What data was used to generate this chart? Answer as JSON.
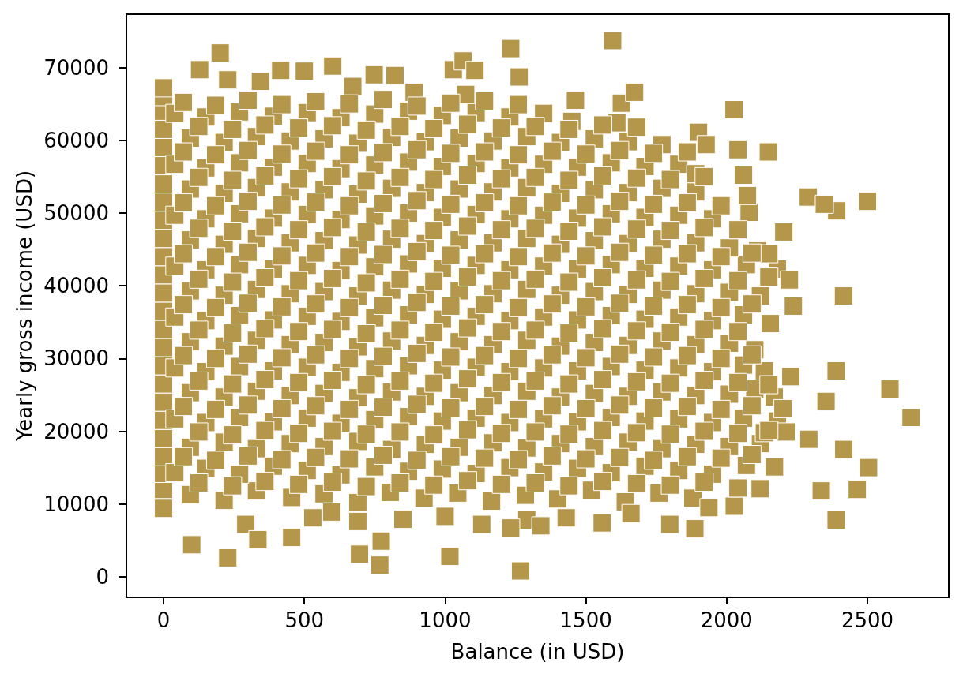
{
  "chart_data": {
    "type": "scatter",
    "xlabel": "Balance (in USD)",
    "ylabel": "Yearly gross income (USD)",
    "color": "#b5974b",
    "marker": "square",
    "grid": false,
    "xlim": [
      -132,
      2789
    ],
    "ylim": [
      -2830,
      77330
    ],
    "xticks": [
      0,
      500,
      1000,
      1500,
      2000,
      2500
    ],
    "yticks": [
      0,
      10000,
      20000,
      30000,
      40000,
      50000,
      60000,
      70000
    ],
    "x": [
      0,
      0,
      0,
      0,
      0,
      0,
      0,
      0,
      0,
      0,
      0,
      0,
      0,
      0,
      0,
      0,
      0,
      0,
      0,
      0,
      0,
      0,
      0,
      0,
      0,
      95,
      215,
      330,
      455,
      570,
      690,
      805,
      925,
      1045,
      1165,
      1285,
      1400,
      1520,
      1640,
      1760,
      1880,
      40,
      150,
      270,
      390,
      510,
      630,
      750,
      870,
      990,
      1110,
      1230,
      1350,
      1470,
      1590,
      1710,
      1830,
      1950,
      2070,
      2170,
      95,
      215,
      330,
      450,
      570,
      690,
      810,
      930,
      1050,
      1170,
      1290,
      1410,
      1530,
      1650,
      1770,
      1890,
      2010,
      2120,
      40,
      150,
      270,
      390,
      510,
      630,
      750,
      870,
      990,
      1110,
      1230,
      1350,
      1470,
      1590,
      1710,
      1830,
      1950,
      2060,
      2180,
      95,
      215,
      330,
      450,
      570,
      690,
      810,
      930,
      1050,
      1170,
      1290,
      1410,
      1530,
      1650,
      1770,
      1890,
      2010,
      2100,
      40,
      150,
      270,
      390,
      510,
      630,
      750,
      870,
      990,
      1110,
      1230,
      1350,
      1470,
      1590,
      1710,
      1830,
      1950,
      2060,
      95,
      215,
      330,
      450,
      570,
      690,
      810,
      930,
      1050,
      1170,
      1290,
      1410,
      1530,
      1650,
      1770,
      1890,
      2010,
      2100,
      40,
      150,
      270,
      390,
      510,
      630,
      750,
      870,
      990,
      1110,
      1230,
      1350,
      1470,
      1590,
      1710,
      1830,
      1950,
      2060,
      95,
      215,
      330,
      450,
      570,
      690,
      810,
      930,
      1050,
      1170,
      1290,
      1410,
      1530,
      1650,
      1770,
      1890,
      2010,
      2120,
      40,
      150,
      270,
      390,
      510,
      630,
      750,
      870,
      990,
      1110,
      1230,
      1350,
      1470,
      1590,
      1710,
      1830,
      1950,
      2070,
      2180,
      95,
      215,
      330,
      450,
      570,
      690,
      810,
      930,
      1050,
      1170,
      1290,
      1410,
      1530,
      1650,
      1770,
      1890,
      2010,
      2110,
      40,
      150,
      270,
      390,
      510,
      630,
      750,
      870,
      990,
      1110,
      1230,
      1350,
      1470,
      1590,
      1710,
      1830,
      1950,
      2080,
      95,
      215,
      330,
      450,
      570,
      690,
      810,
      930,
      1050,
      1170,
      1290,
      1410,
      1530,
      1650,
      1770,
      1890,
      40,
      150,
      270,
      390,
      510,
      630,
      750,
      870,
      990,
      1110,
      1230,
      1350,
      1470,
      1590,
      1710,
      1830,
      1890,
      95,
      215,
      330,
      450,
      570,
      690,
      810,
      930,
      1050,
      1170,
      1290,
      1410,
      1530,
      1650,
      1770,
      40,
      150,
      270,
      390,
      510,
      630,
      750,
      870,
      990,
      1110,
      1230,
      1350,
      1450,
      1610,
      530,
      597,
      292,
      690,
      850,
      1000,
      1130,
      1290,
      1430,
      1558,
      1660,
      1798,
      1937,
      2027,
      1887,
      1233,
      1340,
      1233,
      1595,
      1263,
      1463,
      1626,
      1673,
      2026,
      1900,
      1927,
      2040,
      2148,
      2060,
      2074,
      2290,
      2391,
      2500,
      2347,
      2203,
      2150,
      2223,
      2415,
      2237,
      2155,
      2389,
      2228,
      2580,
      2655,
      2353,
      2134,
      2169,
      2416,
      2504,
      2336,
      2464,
      2389,
      2292,
      2211,
      2134,
      2119,
      2040,
      1268,
      100,
      228,
      768,
      696,
      1017,
      335,
      455,
      773,
      201,
      128,
      228,
      344,
      416,
      500,
      601,
      748,
      822,
      1029,
      1064,
      1106,
      672,
      890,
      1073,
      125,
      245,
      360,
      480,
      600,
      720,
      840,
      960,
      1080,
      1200,
      1320,
      1440,
      1560,
      1680,
      1800,
      1920,
      70,
      185,
      300,
      420,
      540,
      660,
      780,
      900,
      1020,
      1140,
      1260,
      1380,
      1500,
      1620,
      1740,
      1860,
      1980,
      2090,
      125,
      245,
      360,
      480,
      600,
      720,
      840,
      960,
      1080,
      1200,
      1320,
      1440,
      1560,
      1680,
      1800,
      1920,
      2040,
      2150,
      70,
      185,
      300,
      420,
      540,
      660,
      780,
      900,
      1020,
      1140,
      1260,
      1380,
      1500,
      1620,
      1740,
      1860,
      1980,
      2090,
      2200,
      125,
      245,
      360,
      480,
      600,
      720,
      840,
      960,
      1080,
      1200,
      1320,
      1440,
      1560,
      1680,
      1800,
      1920,
      2040,
      2150,
      70,
      185,
      300,
      420,
      540,
      660,
      780,
      900,
      1020,
      1140,
      1260,
      1380,
      1500,
      1620,
      1740,
      1860,
      1980,
      2090,
      125,
      245,
      360,
      480,
      600,
      720,
      840,
      960,
      1080,
      1200,
      1320,
      1440,
      1560,
      1680,
      1800,
      1920,
      2040,
      70,
      185,
      300,
      420,
      540,
      660,
      780,
      900,
      1020,
      1140,
      1260,
      1380,
      1500,
      1620,
      1740,
      1860,
      1980,
      2090,
      125,
      245,
      360,
      480,
      600,
      720,
      840,
      960,
      1080,
      1200,
      1320,
      1440,
      1560,
      1680,
      1800,
      1920,
      2040,
      2150,
      70,
      185,
      300,
      420,
      540,
      660,
      780,
      900,
      1020,
      1140,
      1260,
      1380,
      1500,
      1620,
      1740,
      1860,
      1980,
      2090,
      125,
      245,
      360,
      480,
      600,
      720,
      840,
      960,
      1080,
      1200,
      1320,
      1440,
      1560,
      1680,
      1800,
      1920,
      2040,
      70,
      185,
      300,
      420,
      540,
      660,
      780,
      900,
      1020,
      1140,
      1260,
      1380,
      1500,
      1620,
      1740,
      1860,
      1980,
      125,
      245,
      360,
      480,
      600,
      720,
      840,
      960,
      1080,
      1200,
      1320,
      1440,
      1560,
      1680,
      1800,
      1920,
      70,
      185,
      300,
      420,
      540,
      660,
      780,
      900,
      1020,
      1140,
      1260,
      1380,
      1500,
      1620,
      1740,
      1860,
      125,
      245,
      360,
      480,
      600,
      720,
      840,
      960,
      1080,
      1200,
      1320,
      1440,
      1560,
      1680,
      70,
      185,
      300,
      420,
      540,
      660,
      780,
      900,
      1020,
      1140,
      1260
    ],
    "values": [
      9400,
      12000,
      14200,
      16500,
      19000,
      21500,
      24000,
      26500,
      29000,
      31500,
      34000,
      36500,
      39000,
      41500,
      44000,
      46500,
      49000,
      51500,
      54000,
      56500,
      59000,
      61500,
      64000,
      66000,
      67200,
      11300,
      10500,
      11800,
      10900,
      11400,
      10200,
      11600,
      10800,
      11500,
      10400,
      11200,
      10700,
      11900,
      10300,
      11500,
      10800,
      14300,
      14900,
      14100,
      15200,
      14600,
      14000,
      15100,
      14500,
      14800,
      14200,
      15000,
      14400,
      14900,
      14300,
      15200,
      14600,
      14100,
      15300,
      15100,
      17800,
      18500,
      17600,
      18300,
      17900,
      18600,
      17500,
      18200,
      17800,
      18400,
      17700,
      18300,
      17900,
      18500,
      17600,
      18200,
      17900,
      18300,
      21700,
      21200,
      21900,
      21300,
      21800,
      21100,
      21600,
      22000,
      21400,
      21800,
      21200,
      21700,
      21300,
      21900,
      21400,
      21700,
      21200,
      21800,
      21400,
      25300,
      24700,
      25500,
      24900,
      25200,
      24600,
      25400,
      24800,
      25300,
      24900,
      25500,
      24700,
      25200,
      24800,
      25400,
      24900,
      25100,
      25800,
      28700,
      28200,
      28900,
      28300,
      28800,
      28100,
      28600,
      29000,
      28400,
      28800,
      28200,
      28700,
      28300,
      28900,
      28400,
      28700,
      28200,
      29100,
      32300,
      31700,
      32500,
      31900,
      32200,
      31600,
      32400,
      31800,
      32300,
      31900,
      32500,
      31700,
      32200,
      31800,
      32400,
      31900,
      32100,
      31200,
      35700,
      35200,
      35900,
      35300,
      35800,
      35100,
      35600,
      36000,
      35400,
      35800,
      35200,
      35700,
      35300,
      35900,
      35400,
      35700,
      35200,
      36000,
      39300,
      38700,
      39500,
      38900,
      39200,
      38600,
      39400,
      38800,
      39300,
      38900,
      39500,
      38700,
      39200,
      38800,
      39400,
      38900,
      39100,
      38600,
      42700,
      42200,
      42900,
      42300,
      42800,
      42100,
      42600,
      43000,
      42400,
      42800,
      42200,
      42700,
      42300,
      42900,
      42400,
      42700,
      42200,
      42900,
      42300,
      46300,
      45700,
      46500,
      45900,
      46200,
      45600,
      46400,
      45800,
      46300,
      45900,
      46500,
      45700,
      46200,
      45800,
      46400,
      45900,
      45200,
      44800,
      49700,
      49200,
      49900,
      49300,
      49800,
      49100,
      49600,
      50000,
      49400,
      49800,
      49200,
      49700,
      49300,
      49900,
      49400,
      49700,
      49200,
      50100,
      53300,
      52700,
      53500,
      52900,
      53200,
      52600,
      53400,
      52800,
      53300,
      52900,
      53500,
      52700,
      53200,
      52800,
      53400,
      52900,
      56700,
      56200,
      56900,
      56300,
      56800,
      56100,
      56600,
      57000,
      56400,
      56800,
      56200,
      56700,
      56300,
      56900,
      56400,
      56700,
      55400,
      60300,
      59700,
      60500,
      59900,
      60200,
      59600,
      60400,
      59800,
      60300,
      59900,
      60500,
      59700,
      60200,
      59800,
      59400,
      63700,
      63200,
      63900,
      63300,
      63800,
      63100,
      63600,
      64000,
      63400,
      63800,
      63200,
      63700,
      62600,
      62400,
      8100,
      8900,
      7200,
      7600,
      7900,
      8300,
      7200,
      7800,
      8100,
      7400,
      8700,
      7200,
      9500,
      9700,
      6600,
      6700,
      7000,
      72600,
      73700,
      68700,
      65500,
      65100,
      66600,
      64200,
      61100,
      59400,
      58700,
      58400,
      55200,
      52400,
      52200,
      50300,
      51600,
      51200,
      47400,
      44400,
      40800,
      38600,
      37200,
      34800,
      28300,
      27500,
      25800,
      21900,
      24100,
      28300,
      24700,
      17500,
      15000,
      11800,
      12000,
      7800,
      18900,
      19900,
      19800,
      12100,
      12200,
      800,
      4400,
      2600,
      1600,
      3100,
      2800,
      5100,
      5400,
      4900,
      72000,
      69700,
      68300,
      68100,
      69600,
      69500,
      70200,
      69000,
      68900,
      69700,
      70900,
      69600,
      67400,
      66600,
      66300,
      12900,
      12500,
      13100,
      12700,
      13000,
      12400,
      12900,
      12600,
      13200,
      12700,
      12900,
      12500,
      13100,
      12800,
      12600,
      13000,
      16500,
      16000,
      16600,
      16100,
      16400,
      16200,
      16700,
      16000,
      16500,
      16300,
      16100,
      16600,
      16200,
      16400,
      16000,
      16500,
      16300,
      16800,
      19900,
      19500,
      20100,
      19700,
      20000,
      19600,
      19900,
      19500,
      20200,
      19700,
      19900,
      19600,
      20100,
      19800,
      19600,
      20000,
      19700,
      20100,
      23400,
      23000,
      23600,
      23100,
      23500,
      23000,
      23300,
      23700,
      23200,
      23400,
      23000,
      23500,
      23100,
      23600,
      23200,
      23400,
      23000,
      23500,
      23100,
      26900,
      26500,
      27100,
      26700,
      27000,
      26400,
      26900,
      26600,
      27200,
      26700,
      26900,
      26500,
      27100,
      26800,
      26600,
      27000,
      26700,
      26400,
      30400,
      30000,
      30600,
      30100,
      30500,
      30000,
      30300,
      30700,
      30200,
      30400,
      30000,
      30500,
      30100,
      30600,
      30200,
      30400,
      30000,
      30500,
      33900,
      33500,
      34100,
      33700,
      34000,
      33400,
      33900,
      33600,
      34200,
      33700,
      33900,
      33500,
      34100,
      33800,
      33600,
      34000,
      33700,
      37400,
      37000,
      37600,
      37100,
      37500,
      37000,
      37300,
      37700,
      37200,
      37400,
      37000,
      37500,
      37100,
      37600,
      37200,
      37400,
      37000,
      37500,
      40900,
      40500,
      41100,
      40700,
      41000,
      40400,
      40900,
      40600,
      41200,
      40700,
      40900,
      40500,
      41100,
      40800,
      40600,
      41000,
      40700,
      41200,
      44400,
      44000,
      44600,
      44100,
      44500,
      44000,
      44300,
      44700,
      44200,
      44400,
      44000,
      44500,
      44100,
      44600,
      44200,
      44400,
      44000,
      44500,
      47900,
      47500,
      48100,
      47700,
      48000,
      47400,
      47900,
      47600,
      48200,
      47700,
      47900,
      47500,
      48100,
      47800,
      47600,
      48000,
      47700,
      51400,
      51000,
      51600,
      51100,
      51500,
      51000,
      51300,
      51700,
      51200,
      51400,
      51000,
      51500,
      51100,
      51600,
      51200,
      51400,
      51000,
      54900,
      54500,
      55100,
      54700,
      55000,
      54400,
      54900,
      54600,
      55200,
      54700,
      54900,
      54500,
      55100,
      54800,
      54600,
      55000,
      58400,
      58000,
      58600,
      58100,
      58500,
      58000,
      58300,
      58700,
      58200,
      58400,
      58000,
      58500,
      58100,
      58600,
      58200,
      58400,
      61900,
      61500,
      62100,
      61700,
      62000,
      61400,
      61900,
      61600,
      62200,
      61700,
      61900,
      61500,
      62100,
      61800,
      65200,
      64800,
      65500,
      64900,
      65300,
      65000,
      65600,
      64700,
      65100,
      65400,
      64900
    ]
  }
}
